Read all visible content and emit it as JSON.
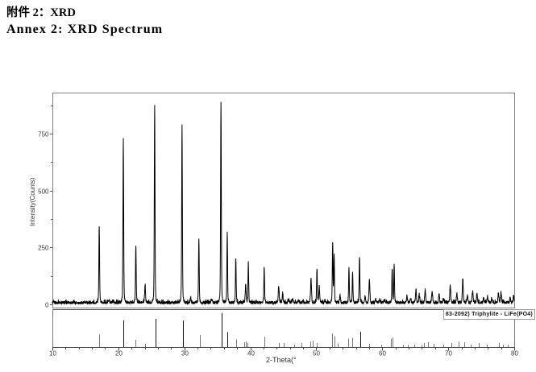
{
  "header": {
    "title_zh": "附件 2：XRD",
    "title_en": "Annex 2: XRD Spectrum"
  },
  "chart_data": {
    "type": "line",
    "xlabel": "2-Theta(°",
    "ylabel": "Intensity(Counts)",
    "xlim": [
      10,
      80
    ],
    "ylim": [
      0,
      930
    ],
    "x_ticks": [
      10,
      20,
      30,
      40,
      50,
      60,
      70,
      80
    ],
    "y_ticks": [
      0,
      250,
      500,
      750
    ],
    "grid": false,
    "line_color": "#000000",
    "reference_label": "83-2092) Triphylite - LiFe(PO4)",
    "peaks_two_theta_counts": [
      [
        17.1,
        340
      ],
      [
        18.55,
        15
      ],
      [
        20.75,
        725
      ],
      [
        22.65,
        255
      ],
      [
        24.05,
        75
      ],
      [
        25.5,
        870
      ],
      [
        29.65,
        780
      ],
      [
        30.95,
        22
      ],
      [
        32.2,
        285
      ],
      [
        34.15,
        20
      ],
      [
        35.55,
        885
      ],
      [
        36.5,
        310
      ],
      [
        37.8,
        195
      ],
      [
        39.3,
        80
      ],
      [
        39.7,
        175
      ],
      [
        42.1,
        155
      ],
      [
        44.3,
        70
      ],
      [
        44.9,
        35
      ],
      [
        45.8,
        14
      ],
      [
        46.4,
        18
      ],
      [
        47.3,
        15
      ],
      [
        48.0,
        12
      ],
      [
        49.2,
        110
      ],
      [
        50.1,
        145
      ],
      [
        50.45,
        70
      ],
      [
        51.3,
        13
      ],
      [
        52.48,
        265
      ],
      [
        52.7,
        210
      ],
      [
        53.6,
        30
      ],
      [
        54.95,
        150
      ],
      [
        55.5,
        135
      ],
      [
        56.55,
        205
      ],
      [
        57.4,
        28
      ],
      [
        58.05,
        105
      ],
      [
        59.0,
        15
      ],
      [
        59.6,
        15
      ],
      [
        60.3,
        13
      ],
      [
        61.5,
        150
      ],
      [
        61.8,
        165
      ],
      [
        63.75,
        32
      ],
      [
        64.3,
        20
      ],
      [
        65.1,
        52
      ],
      [
        65.6,
        36
      ],
      [
        66.5,
        58
      ],
      [
        67.55,
        52
      ],
      [
        68.6,
        36
      ],
      [
        69.3,
        16
      ],
      [
        70.3,
        78
      ],
      [
        71.3,
        41
      ],
      [
        72.2,
        105
      ],
      [
        72.9,
        29
      ],
      [
        73.7,
        52
      ],
      [
        74.35,
        41
      ],
      [
        75.35,
        23
      ],
      [
        75.95,
        29
      ],
      [
        76.6,
        15
      ],
      [
        77.6,
        45
      ],
      [
        78.0,
        46
      ],
      [
        79.4,
        17
      ],
      [
        79.9,
        35
      ]
    ],
    "reference_sticks_two_theta_pct": [
      [
        17.12,
        35
      ],
      [
        20.8,
        74
      ],
      [
        22.62,
        20
      ],
      [
        24.05,
        9
      ],
      [
        25.6,
        78
      ],
      [
        29.75,
        73
      ],
      [
        32.3,
        33
      ],
      [
        35.6,
        94
      ],
      [
        36.5,
        41
      ],
      [
        37.8,
        21
      ],
      [
        39.1,
        13
      ],
      [
        39.35,
        15
      ],
      [
        39.6,
        12
      ],
      [
        42.1,
        28
      ],
      [
        44.3,
        11
      ],
      [
        45.05,
        11
      ],
      [
        46.6,
        7
      ],
      [
        47.75,
        11
      ],
      [
        49.1,
        15
      ],
      [
        49.45,
        17
      ],
      [
        50.05,
        11
      ],
      [
        52.4,
        37
      ],
      [
        52.75,
        30
      ],
      [
        53.25,
        10
      ],
      [
        54.85,
        23
      ],
      [
        55.4,
        25
      ],
      [
        56.65,
        42
      ],
      [
        58.05,
        9
      ],
      [
        59.8,
        6
      ],
      [
        61.3,
        23
      ],
      [
        61.6,
        26
      ],
      [
        63.1,
        6
      ],
      [
        63.85,
        6
      ],
      [
        64.85,
        7
      ],
      [
        65.9,
        6
      ],
      [
        66.3,
        11
      ],
      [
        66.9,
        14
      ],
      [
        67.8,
        9
      ],
      [
        69.2,
        7
      ],
      [
        70.45,
        11
      ],
      [
        71.6,
        15
      ],
      [
        72.4,
        13
      ],
      [
        73.4,
        7
      ],
      [
        74.65,
        11
      ],
      [
        75.85,
        7
      ],
      [
        77.65,
        12
      ],
      [
        78.25,
        7
      ],
      [
        79.0,
        6
      ],
      [
        79.95,
        26
      ]
    ]
  }
}
